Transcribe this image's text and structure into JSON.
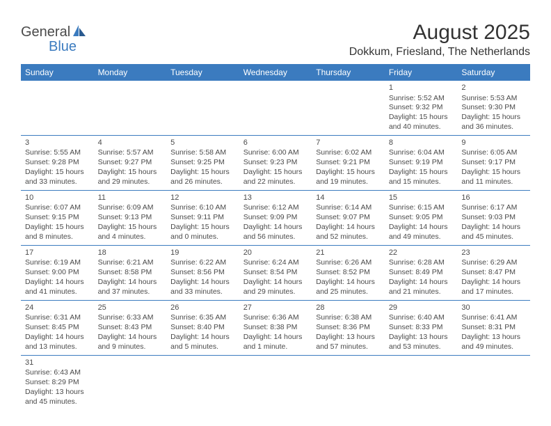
{
  "logo": {
    "text1": "General",
    "text2": "Blue"
  },
  "title": "August 2025",
  "location": "Dokkum, Friesland, The Netherlands",
  "headers": [
    "Sunday",
    "Monday",
    "Tuesday",
    "Wednesday",
    "Thursday",
    "Friday",
    "Saturday"
  ],
  "colors": {
    "header_bg": "#3b7bbf",
    "header_text": "#ffffff",
    "text": "#4a4a4a",
    "border": "#3b7bbf"
  },
  "weeks": [
    [
      null,
      null,
      null,
      null,
      null,
      {
        "n": "1",
        "sr": "Sunrise: 5:52 AM",
        "ss": "Sunset: 9:32 PM",
        "d1": "Daylight: 15 hours",
        "d2": "and 40 minutes."
      },
      {
        "n": "2",
        "sr": "Sunrise: 5:53 AM",
        "ss": "Sunset: 9:30 PM",
        "d1": "Daylight: 15 hours",
        "d2": "and 36 minutes."
      }
    ],
    [
      {
        "n": "3",
        "sr": "Sunrise: 5:55 AM",
        "ss": "Sunset: 9:28 PM",
        "d1": "Daylight: 15 hours",
        "d2": "and 33 minutes."
      },
      {
        "n": "4",
        "sr": "Sunrise: 5:57 AM",
        "ss": "Sunset: 9:27 PM",
        "d1": "Daylight: 15 hours",
        "d2": "and 29 minutes."
      },
      {
        "n": "5",
        "sr": "Sunrise: 5:58 AM",
        "ss": "Sunset: 9:25 PM",
        "d1": "Daylight: 15 hours",
        "d2": "and 26 minutes."
      },
      {
        "n": "6",
        "sr": "Sunrise: 6:00 AM",
        "ss": "Sunset: 9:23 PM",
        "d1": "Daylight: 15 hours",
        "d2": "and 22 minutes."
      },
      {
        "n": "7",
        "sr": "Sunrise: 6:02 AM",
        "ss": "Sunset: 9:21 PM",
        "d1": "Daylight: 15 hours",
        "d2": "and 19 minutes."
      },
      {
        "n": "8",
        "sr": "Sunrise: 6:04 AM",
        "ss": "Sunset: 9:19 PM",
        "d1": "Daylight: 15 hours",
        "d2": "and 15 minutes."
      },
      {
        "n": "9",
        "sr": "Sunrise: 6:05 AM",
        "ss": "Sunset: 9:17 PM",
        "d1": "Daylight: 15 hours",
        "d2": "and 11 minutes."
      }
    ],
    [
      {
        "n": "10",
        "sr": "Sunrise: 6:07 AM",
        "ss": "Sunset: 9:15 PM",
        "d1": "Daylight: 15 hours",
        "d2": "and 8 minutes."
      },
      {
        "n": "11",
        "sr": "Sunrise: 6:09 AM",
        "ss": "Sunset: 9:13 PM",
        "d1": "Daylight: 15 hours",
        "d2": "and 4 minutes."
      },
      {
        "n": "12",
        "sr": "Sunrise: 6:10 AM",
        "ss": "Sunset: 9:11 PM",
        "d1": "Daylight: 15 hours",
        "d2": "and 0 minutes."
      },
      {
        "n": "13",
        "sr": "Sunrise: 6:12 AM",
        "ss": "Sunset: 9:09 PM",
        "d1": "Daylight: 14 hours",
        "d2": "and 56 minutes."
      },
      {
        "n": "14",
        "sr": "Sunrise: 6:14 AM",
        "ss": "Sunset: 9:07 PM",
        "d1": "Daylight: 14 hours",
        "d2": "and 52 minutes."
      },
      {
        "n": "15",
        "sr": "Sunrise: 6:15 AM",
        "ss": "Sunset: 9:05 PM",
        "d1": "Daylight: 14 hours",
        "d2": "and 49 minutes."
      },
      {
        "n": "16",
        "sr": "Sunrise: 6:17 AM",
        "ss": "Sunset: 9:03 PM",
        "d1": "Daylight: 14 hours",
        "d2": "and 45 minutes."
      }
    ],
    [
      {
        "n": "17",
        "sr": "Sunrise: 6:19 AM",
        "ss": "Sunset: 9:00 PM",
        "d1": "Daylight: 14 hours",
        "d2": "and 41 minutes."
      },
      {
        "n": "18",
        "sr": "Sunrise: 6:21 AM",
        "ss": "Sunset: 8:58 PM",
        "d1": "Daylight: 14 hours",
        "d2": "and 37 minutes."
      },
      {
        "n": "19",
        "sr": "Sunrise: 6:22 AM",
        "ss": "Sunset: 8:56 PM",
        "d1": "Daylight: 14 hours",
        "d2": "and 33 minutes."
      },
      {
        "n": "20",
        "sr": "Sunrise: 6:24 AM",
        "ss": "Sunset: 8:54 PM",
        "d1": "Daylight: 14 hours",
        "d2": "and 29 minutes."
      },
      {
        "n": "21",
        "sr": "Sunrise: 6:26 AM",
        "ss": "Sunset: 8:52 PM",
        "d1": "Daylight: 14 hours",
        "d2": "and 25 minutes."
      },
      {
        "n": "22",
        "sr": "Sunrise: 6:28 AM",
        "ss": "Sunset: 8:49 PM",
        "d1": "Daylight: 14 hours",
        "d2": "and 21 minutes."
      },
      {
        "n": "23",
        "sr": "Sunrise: 6:29 AM",
        "ss": "Sunset: 8:47 PM",
        "d1": "Daylight: 14 hours",
        "d2": "and 17 minutes."
      }
    ],
    [
      {
        "n": "24",
        "sr": "Sunrise: 6:31 AM",
        "ss": "Sunset: 8:45 PM",
        "d1": "Daylight: 14 hours",
        "d2": "and 13 minutes."
      },
      {
        "n": "25",
        "sr": "Sunrise: 6:33 AM",
        "ss": "Sunset: 8:43 PM",
        "d1": "Daylight: 14 hours",
        "d2": "and 9 minutes."
      },
      {
        "n": "26",
        "sr": "Sunrise: 6:35 AM",
        "ss": "Sunset: 8:40 PM",
        "d1": "Daylight: 14 hours",
        "d2": "and 5 minutes."
      },
      {
        "n": "27",
        "sr": "Sunrise: 6:36 AM",
        "ss": "Sunset: 8:38 PM",
        "d1": "Daylight: 14 hours",
        "d2": "and 1 minute."
      },
      {
        "n": "28",
        "sr": "Sunrise: 6:38 AM",
        "ss": "Sunset: 8:36 PM",
        "d1": "Daylight: 13 hours",
        "d2": "and 57 minutes."
      },
      {
        "n": "29",
        "sr": "Sunrise: 6:40 AM",
        "ss": "Sunset: 8:33 PM",
        "d1": "Daylight: 13 hours",
        "d2": "and 53 minutes."
      },
      {
        "n": "30",
        "sr": "Sunrise: 6:41 AM",
        "ss": "Sunset: 8:31 PM",
        "d1": "Daylight: 13 hours",
        "d2": "and 49 minutes."
      }
    ],
    [
      {
        "n": "31",
        "sr": "Sunrise: 6:43 AM",
        "ss": "Sunset: 8:29 PM",
        "d1": "Daylight: 13 hours",
        "d2": "and 45 minutes."
      },
      null,
      null,
      null,
      null,
      null,
      null
    ]
  ]
}
